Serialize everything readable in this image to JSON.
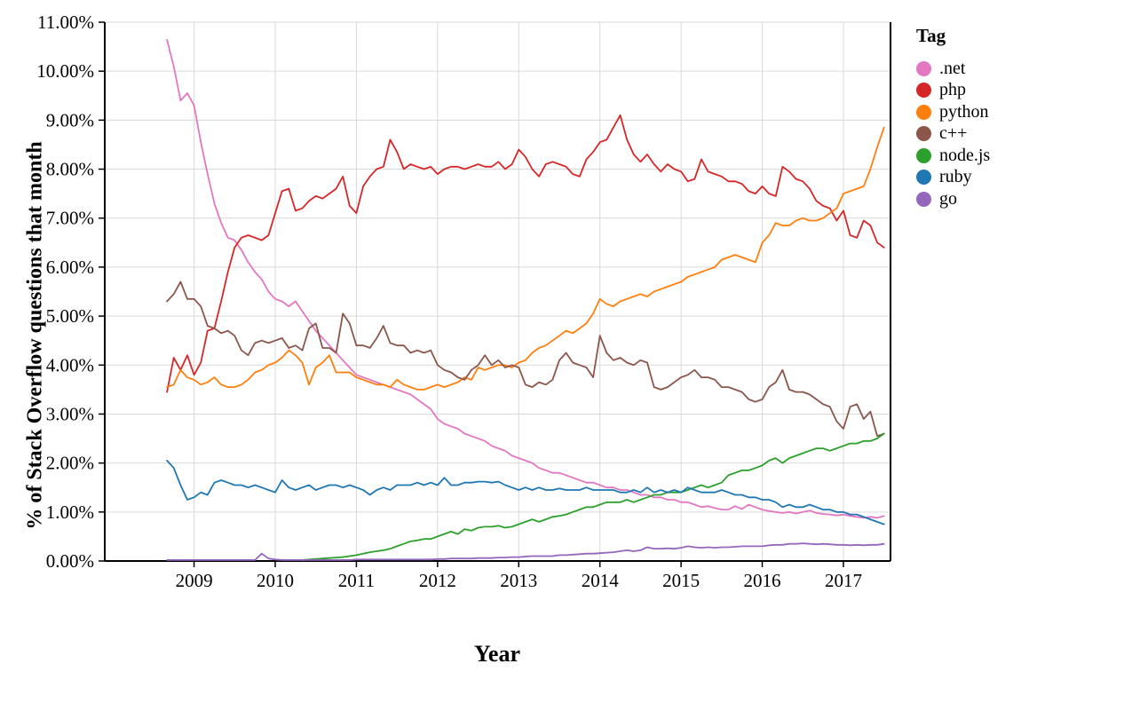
{
  "figure": {
    "background": "#ffffff"
  },
  "chart_data": {
    "type": "line",
    "title": "",
    "xlabel": "Year",
    "ylabel": "% of Stack Overflow questions that month",
    "xlim": [
      2007.9,
      2017.58
    ],
    "ylim": [
      0,
      11
    ],
    "grid": true,
    "legend": {
      "title": "Tag",
      "position": "right"
    },
    "xticks": [
      {
        "v": 2009,
        "label": "2009"
      },
      {
        "v": 2010,
        "label": "2010"
      },
      {
        "v": 2011,
        "label": "2011"
      },
      {
        "v": 2012,
        "label": "2012"
      },
      {
        "v": 2013,
        "label": "2013"
      },
      {
        "v": 2014,
        "label": "2014"
      },
      {
        "v": 2015,
        "label": "2015"
      },
      {
        "v": 2016,
        "label": "2016"
      },
      {
        "v": 2017,
        "label": "2017"
      }
    ],
    "yticks": [
      {
        "v": 0,
        "label": "0.00%"
      },
      {
        "v": 1,
        "label": "1.00%"
      },
      {
        "v": 2,
        "label": "2.00%"
      },
      {
        "v": 3,
        "label": "3.00%"
      },
      {
        "v": 4,
        "label": "4.00%"
      },
      {
        "v": 5,
        "label": "5.00%"
      },
      {
        "v": 6,
        "label": "6.00%"
      },
      {
        "v": 7,
        "label": "7.00%"
      },
      {
        "v": 8,
        "label": "8.00%"
      },
      {
        "v": 9,
        "label": "9.00%"
      },
      {
        "v": 10,
        "label": "10.00%"
      },
      {
        "v": 11,
        "label": "11.00%"
      }
    ],
    "x_unit": "fractional year, monthly samples",
    "series": [
      {
        "name": ".net",
        "color": "#e377c2",
        "x_start": 2008.667,
        "x_step": 0.08333,
        "values": [
          10.64,
          10.1,
          9.4,
          9.55,
          9.3,
          8.55,
          7.9,
          7.3,
          6.9,
          6.6,
          6.55,
          6.35,
          6.1,
          5.9,
          5.75,
          5.5,
          5.35,
          5.3,
          5.2,
          5.3,
          5.1,
          4.9,
          4.7,
          4.55,
          4.4,
          4.25,
          4.1,
          3.95,
          3.8,
          3.75,
          3.7,
          3.65,
          3.6,
          3.55,
          3.5,
          3.45,
          3.4,
          3.3,
          3.2,
          3.1,
          2.9,
          2.8,
          2.75,
          2.7,
          2.6,
          2.55,
          2.5,
          2.45,
          2.35,
          2.3,
          2.25,
          2.15,
          2.1,
          2.05,
          2.0,
          1.9,
          1.85,
          1.8,
          1.8,
          1.75,
          1.7,
          1.65,
          1.6,
          1.6,
          1.55,
          1.5,
          1.5,
          1.45,
          1.45,
          1.4,
          1.35,
          1.35,
          1.3,
          1.3,
          1.25,
          1.25,
          1.2,
          1.2,
          1.15,
          1.1,
          1.12,
          1.08,
          1.05,
          1.05,
          1.12,
          1.06,
          1.15,
          1.1,
          1.05,
          1.02,
          1.0,
          0.98,
          1.0,
          0.97,
          1.0,
          1.03,
          0.98,
          0.96,
          0.95,
          0.93,
          0.95,
          0.92,
          0.9,
          0.88,
          0.9,
          0.88,
          0.92
        ]
      },
      {
        "name": "php",
        "color": "#d62728",
        "x_start": 2008.667,
        "x_step": 0.08333,
        "values": [
          3.45,
          4.15,
          3.9,
          4.2,
          3.8,
          4.05,
          4.7,
          4.75,
          5.3,
          5.9,
          6.4,
          6.6,
          6.65,
          6.6,
          6.55,
          6.65,
          7.1,
          7.55,
          7.6,
          7.15,
          7.2,
          7.35,
          7.45,
          7.4,
          7.5,
          7.6,
          7.85,
          7.25,
          7.1,
          7.65,
          7.85,
          8.0,
          8.05,
          8.6,
          8.35,
          8.0,
          8.1,
          8.05,
          8.0,
          8.05,
          7.9,
          8.0,
          8.05,
          8.05,
          8.0,
          8.05,
          8.1,
          8.05,
          8.05,
          8.15,
          8.0,
          8.1,
          8.4,
          8.25,
          8.0,
          7.85,
          8.1,
          8.15,
          8.1,
          8.05,
          7.9,
          7.85,
          8.2,
          8.35,
          8.55,
          8.6,
          8.85,
          9.1,
          8.6,
          8.3,
          8.15,
          8.3,
          8.1,
          7.95,
          8.1,
          8.0,
          7.95,
          7.75,
          7.8,
          8.2,
          7.95,
          7.9,
          7.85,
          7.75,
          7.75,
          7.7,
          7.55,
          7.5,
          7.65,
          7.5,
          7.45,
          8.05,
          7.95,
          7.8,
          7.75,
          7.6,
          7.35,
          7.25,
          7.2,
          6.95,
          7.15,
          6.65,
          6.6,
          6.95,
          6.85,
          6.5,
          6.4
        ]
      },
      {
        "name": "python",
        "color": "#ff7f0e",
        "x_start": 2008.667,
        "x_step": 0.08333,
        "values": [
          3.55,
          3.6,
          3.9,
          3.75,
          3.7,
          3.6,
          3.65,
          3.75,
          3.6,
          3.55,
          3.55,
          3.6,
          3.7,
          3.85,
          3.9,
          4.0,
          4.05,
          4.15,
          4.3,
          4.2,
          4.05,
          3.6,
          3.95,
          4.05,
          4.2,
          3.85,
          3.85,
          3.85,
          3.75,
          3.7,
          3.65,
          3.6,
          3.6,
          3.55,
          3.7,
          3.6,
          3.55,
          3.5,
          3.5,
          3.55,
          3.6,
          3.55,
          3.6,
          3.65,
          3.75,
          3.7,
          3.95,
          3.9,
          3.95,
          4.0,
          4.0,
          3.95,
          4.05,
          4.1,
          4.25,
          4.35,
          4.4,
          4.5,
          4.6,
          4.7,
          4.65,
          4.75,
          4.85,
          5.05,
          5.35,
          5.25,
          5.2,
          5.3,
          5.35,
          5.4,
          5.45,
          5.4,
          5.5,
          5.55,
          5.6,
          5.65,
          5.7,
          5.8,
          5.85,
          5.9,
          5.95,
          6.0,
          6.15,
          6.2,
          6.25,
          6.2,
          6.15,
          6.1,
          6.5,
          6.65,
          6.9,
          6.85,
          6.85,
          6.95,
          7.0,
          6.95,
          6.95,
          7.0,
          7.1,
          7.2,
          7.5,
          7.55,
          7.6,
          7.65,
          8.0,
          8.45,
          8.85
        ]
      },
      {
        "name": "c++",
        "color": "#8c564b",
        "x_start": 2008.667,
        "x_step": 0.08333,
        "values": [
          5.3,
          5.45,
          5.7,
          5.35,
          5.35,
          5.2,
          4.8,
          4.75,
          4.65,
          4.7,
          4.6,
          4.3,
          4.2,
          4.45,
          4.5,
          4.45,
          4.5,
          4.55,
          4.35,
          4.4,
          4.3,
          4.75,
          4.85,
          4.35,
          4.35,
          4.25,
          5.05,
          4.85,
          4.4,
          4.4,
          4.35,
          4.55,
          4.8,
          4.45,
          4.4,
          4.4,
          4.25,
          4.3,
          4.25,
          4.3,
          4.0,
          3.9,
          3.85,
          3.75,
          3.7,
          3.9,
          4.0,
          4.2,
          4.0,
          4.1,
          3.95,
          4.0,
          3.95,
          3.6,
          3.55,
          3.65,
          3.6,
          3.7,
          4.1,
          4.25,
          4.05,
          4.0,
          3.95,
          3.75,
          4.6,
          4.25,
          4.1,
          4.15,
          4.05,
          4.0,
          4.1,
          4.05,
          3.55,
          3.5,
          3.55,
          3.65,
          3.75,
          3.8,
          3.9,
          3.75,
          3.75,
          3.7,
          3.55,
          3.55,
          3.5,
          3.45,
          3.3,
          3.25,
          3.3,
          3.55,
          3.65,
          3.9,
          3.5,
          3.45,
          3.45,
          3.4,
          3.3,
          3.2,
          3.15,
          2.85,
          2.7,
          3.15,
          3.2,
          2.9,
          3.05,
          2.55,
          2.6
        ]
      },
      {
        "name": "node.js",
        "color": "#2ca02c",
        "x_start": 2010.333,
        "x_step": 0.08333,
        "values": [
          0.02,
          0.03,
          0.04,
          0.05,
          0.06,
          0.07,
          0.08,
          0.1,
          0.12,
          0.15,
          0.18,
          0.2,
          0.22,
          0.25,
          0.3,
          0.35,
          0.4,
          0.42,
          0.45,
          0.45,
          0.5,
          0.55,
          0.6,
          0.55,
          0.65,
          0.62,
          0.68,
          0.7,
          0.7,
          0.72,
          0.68,
          0.7,
          0.75,
          0.8,
          0.85,
          0.8,
          0.85,
          0.9,
          0.92,
          0.95,
          1.0,
          1.05,
          1.1,
          1.1,
          1.15,
          1.2,
          1.2,
          1.2,
          1.25,
          1.2,
          1.25,
          1.3,
          1.35,
          1.35,
          1.4,
          1.4,
          1.4,
          1.45,
          1.5,
          1.55,
          1.5,
          1.55,
          1.6,
          1.75,
          1.8,
          1.85,
          1.85,
          1.9,
          1.95,
          2.05,
          2.1,
          2.0,
          2.1,
          2.15,
          2.2,
          2.25,
          2.3,
          2.3,
          2.25,
          2.3,
          2.35,
          2.4,
          2.4,
          2.45,
          2.45,
          2.5,
          2.6
        ]
      },
      {
        "name": "ruby",
        "color": "#1f77b4",
        "x_start": 2008.667,
        "x_step": 0.08333,
        "values": [
          2.05,
          1.9,
          1.55,
          1.25,
          1.3,
          1.4,
          1.35,
          1.6,
          1.65,
          1.6,
          1.55,
          1.55,
          1.5,
          1.55,
          1.5,
          1.45,
          1.4,
          1.65,
          1.5,
          1.45,
          1.5,
          1.55,
          1.45,
          1.5,
          1.55,
          1.55,
          1.5,
          1.55,
          1.5,
          1.45,
          1.35,
          1.45,
          1.5,
          1.45,
          1.55,
          1.55,
          1.55,
          1.6,
          1.55,
          1.6,
          1.55,
          1.7,
          1.55,
          1.55,
          1.6,
          1.6,
          1.62,
          1.62,
          1.6,
          1.62,
          1.55,
          1.5,
          1.45,
          1.5,
          1.45,
          1.5,
          1.45,
          1.45,
          1.48,
          1.45,
          1.45,
          1.45,
          1.5,
          1.45,
          1.45,
          1.45,
          1.45,
          1.4,
          1.4,
          1.45,
          1.4,
          1.5,
          1.4,
          1.45,
          1.4,
          1.45,
          1.4,
          1.5,
          1.45,
          1.4,
          1.4,
          1.4,
          1.45,
          1.4,
          1.35,
          1.35,
          1.3,
          1.3,
          1.25,
          1.25,
          1.2,
          1.1,
          1.15,
          1.1,
          1.1,
          1.15,
          1.1,
          1.05,
          1.05,
          1.0,
          1.0,
          0.95,
          0.95,
          0.9,
          0.85,
          0.8,
          0.75
        ]
      },
      {
        "name": "go",
        "color": "#9467bd",
        "x_start": 2008.667,
        "x_step": 0.08333,
        "values": [
          0.02,
          0.02,
          0.02,
          0.02,
          0.02,
          0.02,
          0.02,
          0.02,
          0.02,
          0.02,
          0.02,
          0.02,
          0.02,
          0.02,
          0.15,
          0.05,
          0.03,
          0.02,
          0.02,
          0.02,
          0.02,
          0.02,
          0.02,
          0.02,
          0.02,
          0.02,
          0.02,
          0.02,
          0.03,
          0.03,
          0.03,
          0.03,
          0.03,
          0.03,
          0.03,
          0.03,
          0.03,
          0.03,
          0.03,
          0.03,
          0.04,
          0.04,
          0.05,
          0.05,
          0.05,
          0.05,
          0.06,
          0.06,
          0.06,
          0.07,
          0.07,
          0.08,
          0.08,
          0.09,
          0.1,
          0.1,
          0.1,
          0.1,
          0.12,
          0.12,
          0.13,
          0.14,
          0.15,
          0.15,
          0.16,
          0.17,
          0.18,
          0.2,
          0.22,
          0.2,
          0.22,
          0.28,
          0.25,
          0.25,
          0.26,
          0.25,
          0.27,
          0.3,
          0.28,
          0.27,
          0.28,
          0.27,
          0.28,
          0.28,
          0.29,
          0.3,
          0.3,
          0.3,
          0.3,
          0.32,
          0.33,
          0.33,
          0.35,
          0.35,
          0.36,
          0.35,
          0.34,
          0.35,
          0.34,
          0.33,
          0.33,
          0.32,
          0.33,
          0.32,
          0.33,
          0.33,
          0.35
        ]
      }
    ]
  }
}
